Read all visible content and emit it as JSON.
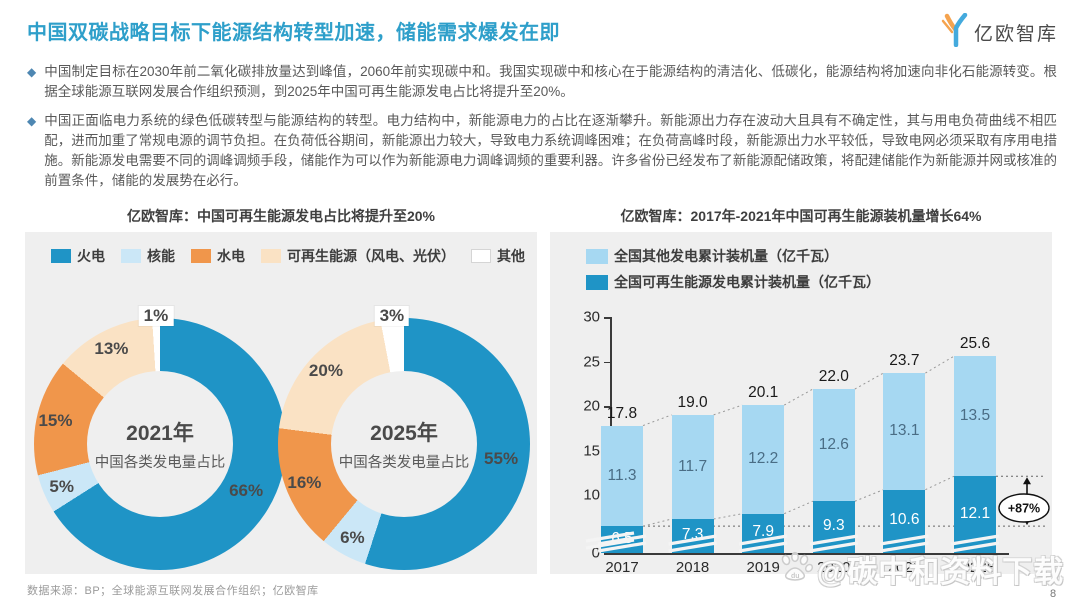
{
  "header": {
    "title": "中国双碳战略目标下能源结构转型加速，储能需求爆发在即",
    "logo_text": "亿欧智库"
  },
  "bullets": [
    "中国制定目标在2030年前二氧化碳排放量达到峰值，2060年前实现碳中和。我国实现碳中和核心在于能源结构的清洁化、低碳化，能源结构将加速向非化石能源转变。根据全球能源互联网发展合作组织预测，到2025年中国可再生能源发电占比将提升至20%。",
    "中国正面临电力系统的绿色低碳转型与能源结构的转型。电力结构中，新能源电力的占比在逐渐攀升。新能源出力存在波动大且具有不确定性，其与用电负荷曲线不相匹配，进而加重了常规电源的调节负担。在负荷低谷期间，新能源出力较大，导致电力系统调峰困难；在负荷高峰时段，新能源出力水平较低，导致电网必须采取有序用电措施。新能源发电需要不同的调峰调频手段，储能作为可以作为新能源电力调峰调频的重要利器。许多省份已经发布了新能源配储政策，将配建储能作为新能源并网或核准的前置条件，储能的发展势在必行。"
  ],
  "colors": {
    "title_blue": "#2E9FCA",
    "bullet_blue": "#4E87B2",
    "panel_bg": "#EFEFEF",
    "dark_blue": "#1F94C6",
    "bar_light_blue": "#A6D8F2",
    "nuclear_light_blue": "#CBE7F7",
    "orange": "#F0964B",
    "peach": "#FAE2C4",
    "white": "#FFFFFF"
  },
  "chart_data": [
    {
      "type": "pie",
      "title": "亿欧智库：中国可再生能源发电占比将提升至20%",
      "legend": [
        "火电",
        "核能",
        "水电",
        "可再生能源（风电、光伏）",
        "其他"
      ],
      "slice_colors": [
        "#1F94C6",
        "#CBE7F7",
        "#F0964B",
        "#FAE2C4",
        "#FFFFFF"
      ],
      "donuts": [
        {
          "center_title": "2021年",
          "center_subtitle": "中国各类发电量占比",
          "slices": [
            {
              "label": "火电",
              "pct": 66
            },
            {
              "label": "核能",
              "pct": 5
            },
            {
              "label": "水电",
              "pct": 15
            },
            {
              "label": "可再生能源（风电、光伏）",
              "pct": 13
            },
            {
              "label": "其他",
              "pct": 1
            }
          ]
        },
        {
          "center_title": "2025年",
          "center_subtitle": "中国各类发电量占比",
          "slices": [
            {
              "label": "火电",
              "pct": 55
            },
            {
              "label": "核能",
              "pct": 6
            },
            {
              "label": "水电",
              "pct": 16
            },
            {
              "label": "可再生能源（风电、光伏）",
              "pct": 20
            },
            {
              "label": "其他",
              "pct": 3
            }
          ]
        }
      ]
    },
    {
      "type": "bar",
      "title": "亿欧智库：2017年-2021年中国可再生能源装机量增长64%",
      "categories": [
        "2017",
        "2018",
        "2019",
        "2020",
        "2021",
        "2022E"
      ],
      "series": [
        {
          "name": "全国其他发电累计装机量（亿千瓦）",
          "color": "#A6D8F2",
          "stack": "top",
          "values": [
            11.3,
            11.7,
            12.2,
            12.6,
            13.1,
            13.5
          ]
        },
        {
          "name": "全国可再生能源发电累计装机量（亿千瓦）",
          "color": "#1F94C6",
          "stack": "bottom",
          "values": [
            6.5,
            7.3,
            7.9,
            9.3,
            10.6,
            12.1
          ]
        }
      ],
      "totals": [
        "17.8",
        "19.0",
        "20.1",
        "22.0",
        "23.7",
        "25.6"
      ],
      "ylim": [
        0,
        30
      ],
      "yticks": [
        0,
        10,
        15,
        20,
        25,
        30
      ],
      "axis_break": true,
      "annotation": {
        "text": "+87%"
      },
      "legend_position": "top-left",
      "grid": false
    }
  ],
  "footer": {
    "source": "数据来源：BP；全球能源互联网发展合作组织；亿欧智库",
    "page_number": "8"
  },
  "watermark": {
    "text": "@碳中和资料下载"
  }
}
